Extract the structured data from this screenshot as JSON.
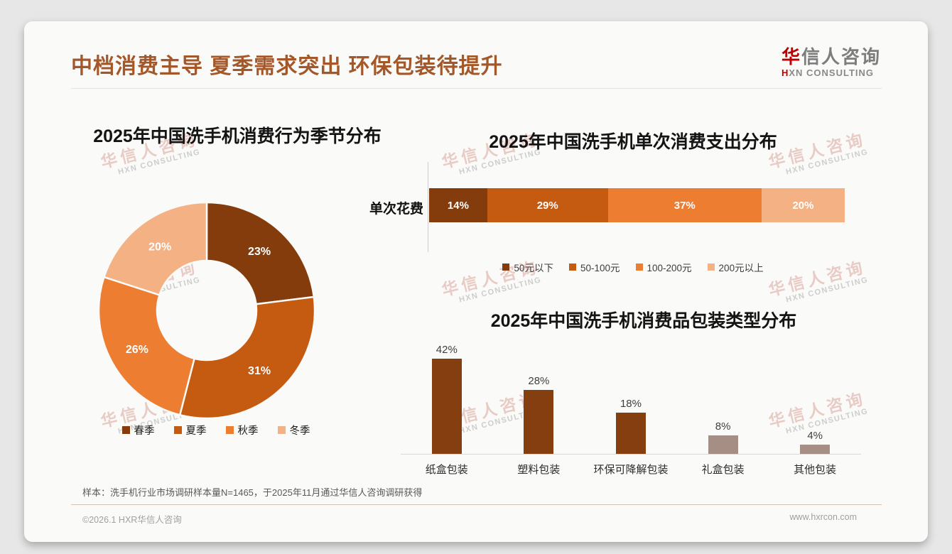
{
  "header": {
    "title": "中档消费主导 夏季需求突出 环保包装待提升",
    "logo": {
      "cn": "华信人咨询",
      "en": "HXN CONSULTING"
    }
  },
  "watermark": {
    "line1": "华信人咨询",
    "line2": "HXN CONSULTING"
  },
  "chart_data": [
    {
      "type": "pie",
      "subtype": "donut",
      "title": "2025年中国洗手机消费行为季节分布",
      "categories": [
        "春季",
        "夏季",
        "秋季",
        "冬季"
      ],
      "values": [
        23,
        31,
        26,
        20
      ],
      "labels": [
        "23%",
        "31%",
        "26%",
        "20%"
      ],
      "colors": [
        "#843C0C",
        "#C55A11",
        "#ED7D31",
        "#F4B183"
      ],
      "legend_position": "bottom",
      "start_angle_deg": 0,
      "direction": "clockwise"
    },
    {
      "type": "bar",
      "subtype": "horizontal-stacked",
      "title": "2025年中国洗手机单次消费支出分布",
      "row_label": "单次花费",
      "series": [
        {
          "name": "50元以下",
          "value": 14,
          "label": "14%",
          "color": "#843C0C"
        },
        {
          "name": "50-100元",
          "value": 29,
          "label": "29%",
          "color": "#C55A11"
        },
        {
          "name": "100-200元",
          "value": 37,
          "label": "37%",
          "color": "#ED7D31"
        },
        {
          "name": "200元以上",
          "value": 20,
          "label": "20%",
          "color": "#F4B183"
        }
      ],
      "xlim": [
        0,
        100
      ],
      "legend_position": "bottom"
    },
    {
      "type": "bar",
      "subtype": "vertical",
      "title": "2025年中国洗手机消费品包装类型分布",
      "categories": [
        "纸盒包装",
        "塑料包装",
        "环保可降解包装",
        "礼盒包装",
        "其他包装"
      ],
      "values": [
        42,
        28,
        18,
        8,
        4
      ],
      "labels": [
        "42%",
        "28%",
        "18%",
        "8%",
        "4%"
      ],
      "colors": [
        "#853E10",
        "#853E10",
        "#853E10",
        "#A78E85",
        "#A78E85"
      ],
      "ylim": [
        0,
        45
      ],
      "grid": false
    }
  ],
  "footer": {
    "note": "样本：洗手机行业市场调研样本量N=1465，于2025年11月通过华信人咨询调研获得",
    "copyright": "©2026.1 HXR华信人咨询",
    "website": "www.hxrcon.com"
  }
}
